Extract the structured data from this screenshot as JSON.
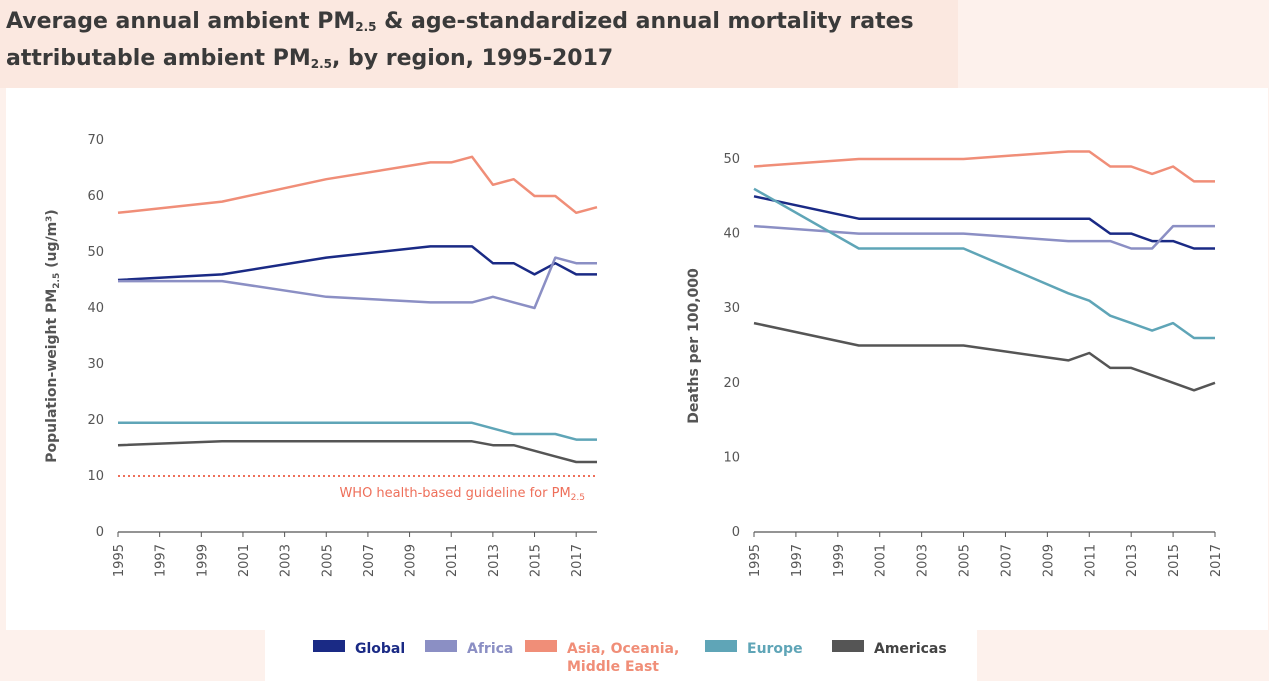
{
  "title": {
    "line1_a": "Average annual ambient PM",
    "line1_sub": "2.5",
    "line1_b": " & age-standardized annual mortality rates",
    "line2_a": "attributable ambient PM",
    "line2_sub": "2.5",
    "line2_b": ", by region, 1995-2017"
  },
  "colors": {
    "Global": "#1a2a85",
    "Africa": "#8b8fc4",
    "Asia": "#f08e78",
    "Europe": "#5fa5b7",
    "Americas": "#555555",
    "guideline": "#ee6f5a"
  },
  "legend": [
    {
      "key": "Global",
      "label_line1": "Global",
      "label_line2": ""
    },
    {
      "key": "Africa",
      "label_line1": "Africa",
      "label_line2": ""
    },
    {
      "key": "Asia",
      "label_line1": "Asia, Oceania,",
      "label_line2": "Middle East"
    },
    {
      "key": "Europe",
      "label_line1": "Europe",
      "label_line2": ""
    },
    {
      "key": "Americas",
      "label_line1": "Americas",
      "label_line2": ""
    }
  ],
  "chart_data": [
    {
      "type": "line",
      "ylabel_a": "Population-weight PM",
      "ylabel_sub": "2.5",
      "ylabel_b": " (ug/m³)",
      "ylim": [
        0,
        70
      ],
      "yticks": [
        0,
        10,
        20,
        30,
        40,
        50,
        60,
        70
      ],
      "xlim": [
        1995,
        2018
      ],
      "xticks": [
        1995,
        1997,
        1999,
        2001,
        2003,
        2005,
        2007,
        2009,
        2011,
        2013,
        2015,
        2017
      ],
      "grid": false,
      "annotation_a": "WHO health-based guideline for PM",
      "annotation_sub": "2.5",
      "guideline_value": 10,
      "series": [
        {
          "name": "Global",
          "key": "Global",
          "x": [
            1995,
            2000,
            2005,
            2010,
            2011,
            2012,
            2013,
            2014,
            2015,
            2016,
            2017,
            2018
          ],
          "y": [
            45,
            46,
            49,
            51,
            51,
            51,
            48,
            48,
            46,
            48,
            46,
            46
          ]
        },
        {
          "name": "Africa",
          "key": "Africa",
          "x": [
            1995,
            2000,
            2005,
            2010,
            2011,
            2012,
            2013,
            2014,
            2015,
            2016,
            2017,
            2018
          ],
          "y": [
            44.8,
            44.8,
            42,
            41,
            41,
            41,
            42,
            41,
            40,
            49,
            48,
            48
          ]
        },
        {
          "name": "Asia, Oceania, Middle East",
          "key": "Asia",
          "x": [
            1995,
            2000,
            2005,
            2010,
            2011,
            2012,
            2013,
            2014,
            2015,
            2016,
            2017,
            2018
          ],
          "y": [
            57,
            59,
            63,
            66,
            66,
            67,
            62,
            63,
            60,
            60,
            57,
            58
          ]
        },
        {
          "name": "Europe",
          "key": "Europe",
          "x": [
            1995,
            2000,
            2005,
            2010,
            2011,
            2012,
            2013,
            2014,
            2015,
            2016,
            2017,
            2018
          ],
          "y": [
            19.5,
            19.5,
            19.5,
            19.5,
            19.5,
            19.5,
            18.5,
            17.5,
            17.5,
            17.5,
            16.5,
            16.5
          ]
        },
        {
          "name": "Americas",
          "key": "Americas",
          "x": [
            1995,
            2000,
            2005,
            2010,
            2011,
            2012,
            2013,
            2014,
            2015,
            2016,
            2017,
            2018
          ],
          "y": [
            15.5,
            16.2,
            16.2,
            16.2,
            16.2,
            16.2,
            15.5,
            15.5,
            14.5,
            13.5,
            12.5,
            12.5
          ]
        }
      ]
    },
    {
      "type": "line",
      "ylabel": "Deaths per 100,000",
      "ylim": [
        0,
        50
      ],
      "yticks": [
        0,
        10,
        20,
        30,
        40,
        50
      ],
      "xlim": [
        1995,
        2017
      ],
      "xticks": [
        1995,
        1997,
        1999,
        2001,
        2003,
        2005,
        2007,
        2009,
        2011,
        2013,
        2015,
        2017
      ],
      "grid": false,
      "series": [
        {
          "name": "Global",
          "key": "Global",
          "x": [
            1995,
            2000,
            2005,
            2010,
            2011,
            2012,
            2013,
            2014,
            2015,
            2016,
            2017
          ],
          "y": [
            45,
            42,
            42,
            42,
            42,
            40,
            40,
            39,
            39,
            38,
            38
          ]
        },
        {
          "name": "Africa",
          "key": "Africa",
          "x": [
            1995,
            2000,
            2005,
            2010,
            2011,
            2012,
            2013,
            2014,
            2015,
            2016,
            2017
          ],
          "y": [
            41,
            40,
            40,
            39,
            39,
            39,
            38,
            38,
            41,
            41,
            41
          ]
        },
        {
          "name": "Asia, Oceania, Middle East",
          "key": "Asia",
          "x": [
            1995,
            2000,
            2005,
            2010,
            2011,
            2012,
            2013,
            2014,
            2015,
            2016,
            2017
          ],
          "y": [
            49,
            50,
            50,
            51,
            51,
            49,
            49,
            48,
            49,
            47,
            47
          ]
        },
        {
          "name": "Europe",
          "key": "Europe",
          "x": [
            1995,
            2000,
            2005,
            2010,
            2011,
            2012,
            2013,
            2014,
            2015,
            2016,
            2017
          ],
          "y": [
            46,
            38,
            38,
            32,
            31,
            29,
            28,
            27,
            28,
            26,
            26
          ]
        },
        {
          "name": "Americas",
          "key": "Americas",
          "x": [
            1995,
            2000,
            2005,
            2010,
            2011,
            2012,
            2013,
            2014,
            2015,
            2016,
            2017
          ],
          "y": [
            28,
            25,
            25,
            23,
            24,
            22,
            22,
            21,
            20,
            19,
            20
          ]
        }
      ]
    }
  ]
}
